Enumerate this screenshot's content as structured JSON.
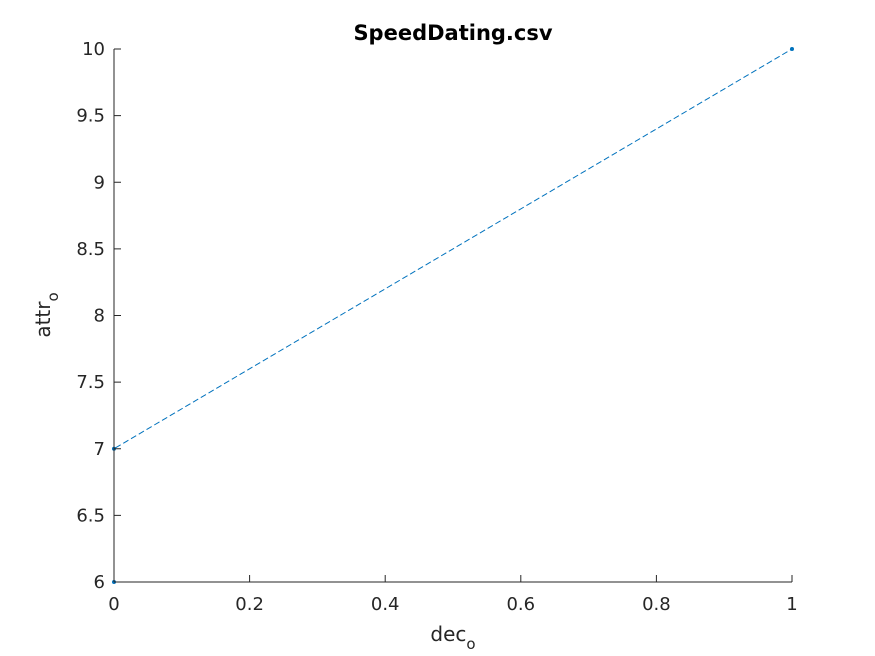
{
  "chart_data": {
    "type": "line",
    "title": "SpeedDating.csv",
    "xlabel": "dec",
    "xlabel_subscript": "o",
    "ylabel": "attr",
    "ylabel_subscript": "o",
    "xlim": [
      0,
      1
    ],
    "ylim": [
      6,
      10
    ],
    "xticks": [
      0,
      0.2,
      0.4,
      0.6,
      0.8,
      1
    ],
    "xtick_labels": [
      "0",
      "0.2",
      "0.4",
      "0.6",
      "0.8",
      "1"
    ],
    "yticks": [
      6,
      6.5,
      7,
      7.5,
      8,
      8.5,
      9,
      9.5,
      10
    ],
    "ytick_labels": [
      "6",
      "6.5",
      "7",
      "7.5",
      "8",
      "8.5",
      "9",
      "9.5",
      "10"
    ],
    "grid": false,
    "line_style": "dashed",
    "marker": "dot",
    "series": [
      {
        "color": "#0072BD",
        "x": [
          0,
          0,
          1
        ],
        "y": [
          6,
          7,
          10
        ]
      }
    ]
  }
}
